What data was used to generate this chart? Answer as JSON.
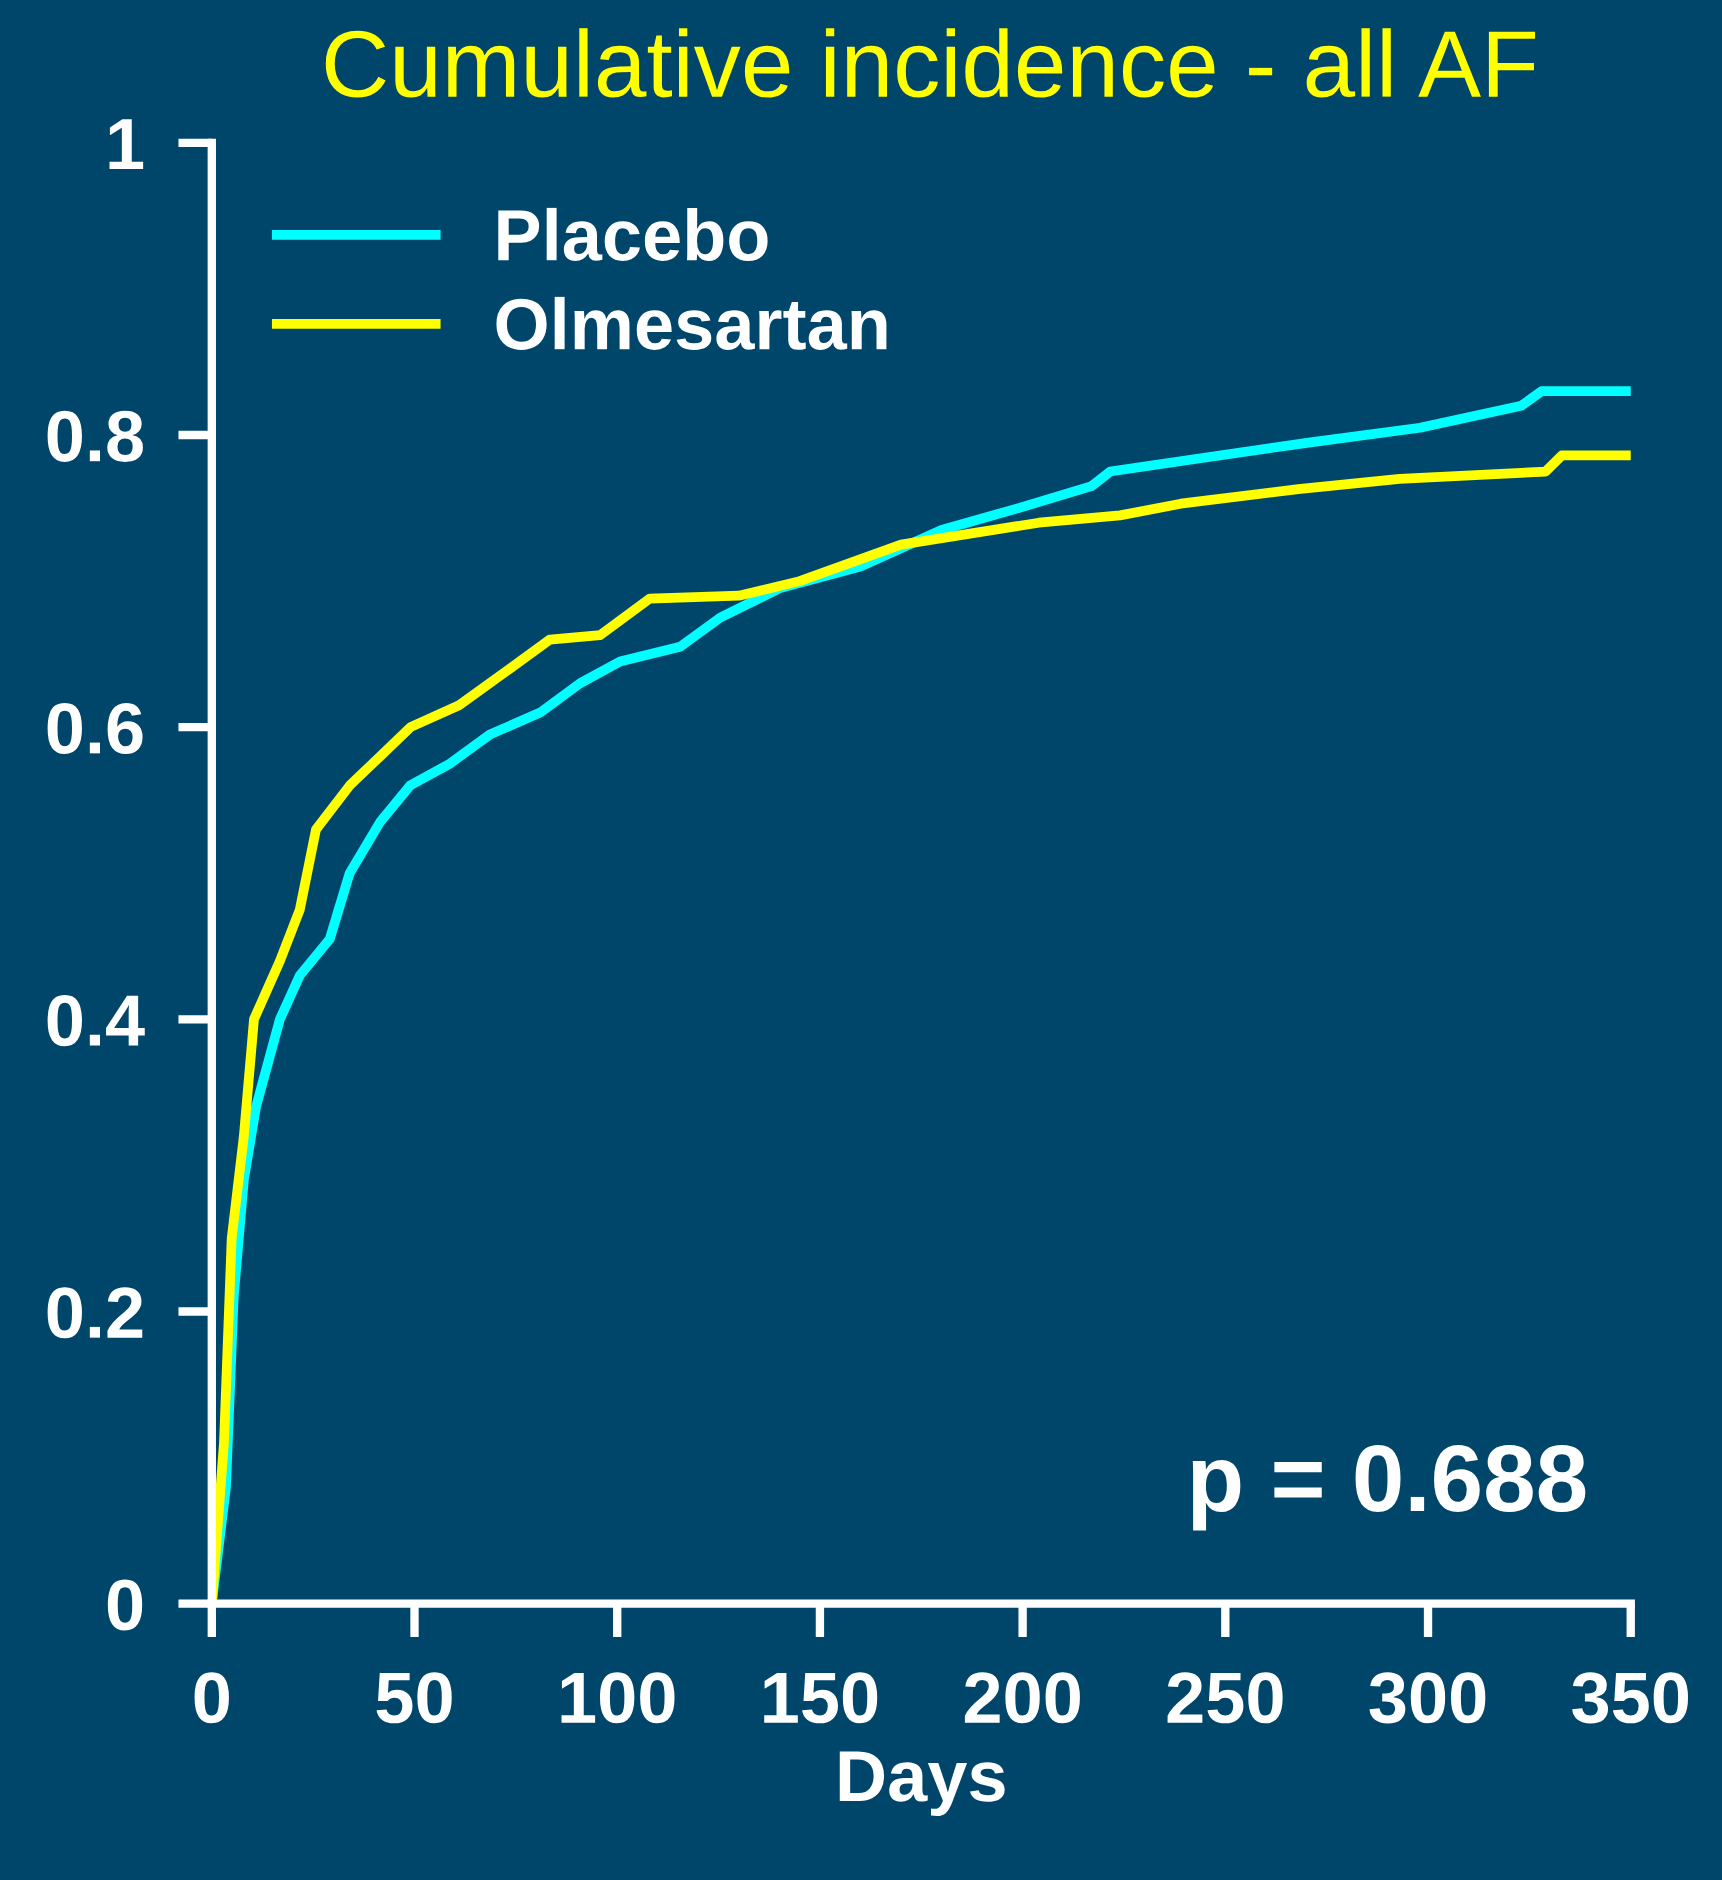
{
  "chart_data": {
    "type": "line",
    "title": "Cumulative incidence - all AF",
    "xlabel": "Days",
    "xlim": [
      0,
      350
    ],
    "xticks": [
      0,
      50,
      100,
      150,
      200,
      250,
      300,
      350
    ],
    "ylim": [
      0,
      1
    ],
    "yticks": [
      0,
      0.2,
      0.4,
      0.6,
      0.8,
      1
    ],
    "grid": false,
    "legend": "top left",
    "marker": "none",
    "line_style": "solid",
    "annotations": [
      "p = 0.688"
    ],
    "series": [
      {
        "name": "Placebo",
        "color": "#00ffff",
        "x": [
          0,
          3.5,
          5.4,
          7.9,
          10.9,
          16.8,
          21.7,
          29.1,
          34,
          41.5,
          48.9,
          58.7,
          68.6,
          81,
          90.8,
          100.7,
          115.5,
          125.4,
          140,
          160,
          180,
          199,
          217,
          221.6,
          246,
          271,
          298,
          323,
          328,
          349
        ],
        "values": [
          0,
          0.08,
          0.21,
          0.29,
          0.34,
          0.4,
          0.43,
          0.455,
          0.5,
          0.535,
          0.56,
          0.575,
          0.595,
          0.61,
          0.63,
          0.645,
          0.655,
          0.675,
          0.695,
          0.71,
          0.735,
          0.75,
          0.765,
          0.775,
          0.785,
          0.795,
          0.805,
          0.82,
          0.83,
          0.83
        ]
      },
      {
        "name": "Olmesartan",
        "color": "#ffff00",
        "x": [
          0,
          3,
          4.9,
          7.9,
          10.4,
          16.8,
          21.7,
          25.7,
          34,
          41.5,
          49,
          61,
          73.5,
          83.4,
          95.8,
          108,
          130,
          145,
          170,
          204,
          224,
          239,
          268,
          293,
          329,
          333,
          349
        ],
        "values": [
          0,
          0.11,
          0.25,
          0.32,
          0.4,
          0.44,
          0.475,
          0.53,
          0.56,
          0.58,
          0.6,
          0.615,
          0.64,
          0.66,
          0.663,
          0.688,
          0.69,
          0.7,
          0.725,
          0.74,
          0.745,
          0.753,
          0.763,
          0.77,
          0.775,
          0.786,
          0.786
        ]
      }
    ]
  }
}
